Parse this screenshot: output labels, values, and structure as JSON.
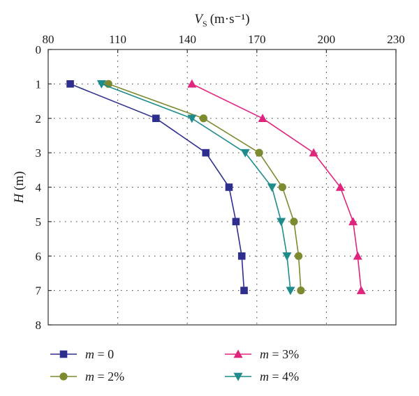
{
  "chart_data": {
    "type": "line",
    "title": "",
    "xlabel": {
      "symbol": "V",
      "subscript": "S",
      "unit": "(m·s⁻¹)"
    },
    "ylabel": {
      "symbol": "H",
      "unit": " (m)"
    },
    "x_axis_position": "top",
    "y_axis_inverted": true,
    "xlim": [
      80,
      230
    ],
    "ylim": [
      0,
      8
    ],
    "x_ticks": [
      80,
      110,
      140,
      170,
      200,
      230
    ],
    "y_ticks": [
      0,
      1,
      2,
      3,
      4,
      5,
      6,
      7,
      8
    ],
    "grid": true,
    "legend_position": "bottom",
    "series": [
      {
        "name": "m = 0",
        "label_var": "m",
        "label_rest": " = 0",
        "color": "#2e2e8f",
        "marker": "square",
        "points": [
          [
            89.5,
            1
          ],
          [
            126.5,
            2
          ],
          [
            148,
            3
          ],
          [
            158,
            4
          ],
          [
            161,
            5
          ],
          [
            163.5,
            6
          ],
          [
            164.5,
            7
          ]
        ]
      },
      {
        "name": "m = 2%",
        "label_var": "m",
        "label_rest": " = 2%",
        "color": "#7d8a2f",
        "marker": "circle",
        "points": [
          [
            106,
            1
          ],
          [
            147,
            2
          ],
          [
            171,
            3
          ],
          [
            181,
            4
          ],
          [
            186,
            5
          ],
          [
            188,
            6
          ],
          [
            189,
            7
          ]
        ]
      },
      {
        "name": "m = 3%",
        "label_var": "m",
        "label_rest": " = 3%",
        "color": "#e0257f",
        "marker": "triangle-up",
        "points": [
          [
            142,
            1
          ],
          [
            172.5,
            2
          ],
          [
            194.5,
            3
          ],
          [
            206,
            4
          ],
          [
            211.5,
            5
          ],
          [
            213.5,
            6
          ],
          [
            215,
            7
          ]
        ]
      },
      {
        "name": "m = 4%",
        "label_var": "m",
        "label_rest": " = 4%",
        "color": "#1f8c8c",
        "marker": "triangle-down",
        "points": [
          [
            103,
            1
          ],
          [
            142,
            2
          ],
          [
            165,
            3
          ],
          [
            176.5,
            4
          ],
          [
            180.5,
            5
          ],
          [
            183,
            6
          ],
          [
            184.5,
            7
          ]
        ]
      }
    ]
  }
}
